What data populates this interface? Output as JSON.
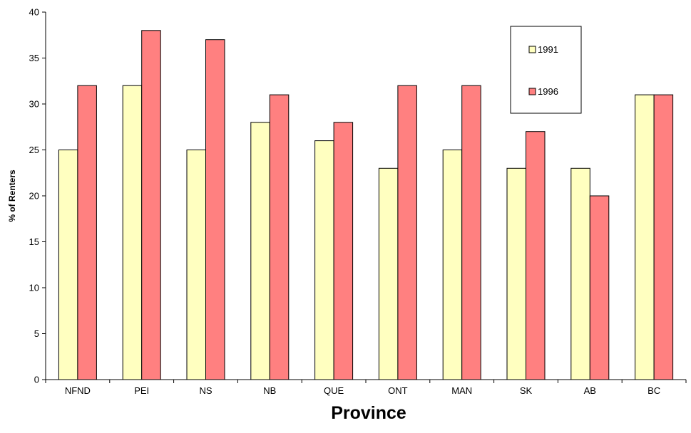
{
  "chart_data": {
    "type": "bar",
    "xlabel": "Province",
    "ylabel": "% of Renters",
    "ylim": [
      0,
      40
    ],
    "yticks": [
      0,
      5,
      10,
      15,
      20,
      25,
      30,
      35,
      40
    ],
    "categories": [
      "NFND",
      "PEI",
      "NS",
      "NB",
      "QUE",
      "ONT",
      "MAN",
      "SK",
      "AB",
      "BC"
    ],
    "series": [
      {
        "name": "1991",
        "color": "#FFFFC0",
        "values": [
          25,
          32,
          25,
          28,
          26,
          23,
          25,
          23,
          23,
          31
        ]
      },
      {
        "name": "1996",
        "color": "#FF8080",
        "values": [
          32,
          38,
          37,
          31,
          28,
          32,
          32,
          27,
          20,
          31
        ]
      }
    ],
    "legend_position": "top-right",
    "grid": false
  }
}
